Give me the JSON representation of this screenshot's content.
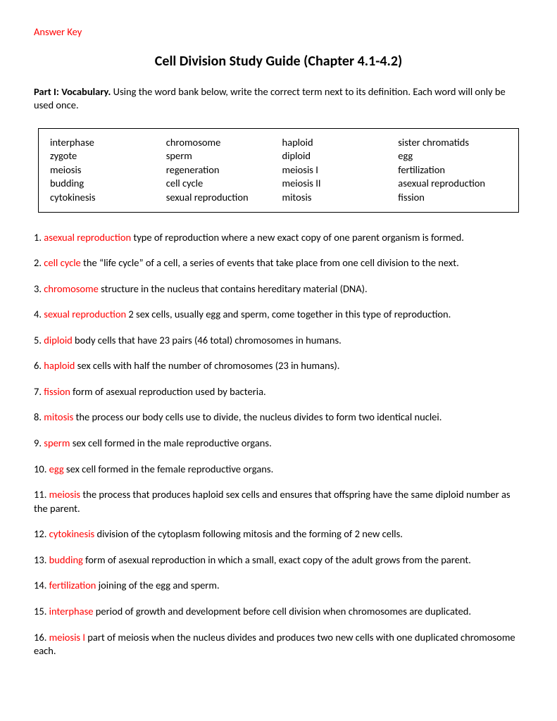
{
  "header": {
    "answer_key_label": "Answer Key",
    "title": "Cell Division Study Guide (Chapter 4.1-4.2)"
  },
  "instructions": {
    "lead": "Part I: Vocabulary.",
    "rest": " Using the word bank below, write the correct term next to its definition. Each word will only be used once."
  },
  "wordbank": {
    "cols": [
      [
        "interphase",
        "zygote",
        "meiosis",
        "budding",
        "cytokinesis"
      ],
      [
        "chromosome",
        "sperm",
        "regeneration",
        "cell cycle",
        "sexual reproduction"
      ],
      [
        "haploid",
        "diploid",
        "meiosis I",
        "meiosis II",
        "mitosis"
      ],
      [
        "sister chromatids",
        "egg",
        "fertilization",
        "asexual reproduction",
        "fission"
      ]
    ]
  },
  "definitions": [
    {
      "num": "1.",
      "answer": "asexual reproduction",
      "text": " type of reproduction where a new exact copy of one parent organism is formed."
    },
    {
      "num": "2.",
      "answer": "cell cycle",
      "text": " the “life cycle” of a cell, a series of events that take place from one cell division to the next."
    },
    {
      "num": "3.",
      "answer": "chromosome",
      "text": " structure in the nucleus that contains hereditary material (DNA)."
    },
    {
      "num": "4.",
      "answer": "sexual reproduction",
      "text": " 2 sex cells, usually egg and sperm, come together in this type of reproduction."
    },
    {
      "num": "5.",
      "answer": "diploid",
      "text": " body cells that have 23 pairs (46 total) chromosomes in humans."
    },
    {
      "num": "6.",
      "answer": "haploid",
      "text": " sex cells with half the number of chromosomes (23 in humans)."
    },
    {
      "num": "7.",
      "answer": "fission",
      "text": " form of asexual reproduction used by bacteria."
    },
    {
      "num": "8.",
      "answer": "mitosis",
      "text": " the process our body cells use to divide, the nucleus divides to form two identical nuclei."
    },
    {
      "num": "9.",
      "answer": "sperm",
      "text": " sex cell formed in the male reproductive organs."
    },
    {
      "num": "10.",
      "answer": "egg",
      "text": " sex cell formed in the female reproductive organs."
    },
    {
      "num": "11.",
      "answer": "meiosis",
      "text": " the process that produces haploid sex cells and ensures that offspring have the same diploid number as the parent."
    },
    {
      "num": "12.",
      "answer": "cytokinesis",
      "text": " division of the cytoplasm following mitosis and the forming of 2 new cells."
    },
    {
      "num": "13.",
      "answer": "budding",
      "text": " form of asexual reproduction in which a small, exact copy of the adult grows from the parent."
    },
    {
      "num": "14.",
      "answer": "fertilization",
      "text": " joining of the egg and sperm."
    },
    {
      "num": "15.",
      "answer": "interphase",
      "text": " period of growth and development before cell division when chromosomes are duplicated."
    },
    {
      "num": "16.",
      "answer": "meiosis I",
      "text": " part of meiosis when the nucleus divides and produces two new cells with one duplicated chromosome each."
    }
  ],
  "colors": {
    "answer_red": "#ff0000",
    "text_black": "#000000",
    "background": "#ffffff"
  }
}
